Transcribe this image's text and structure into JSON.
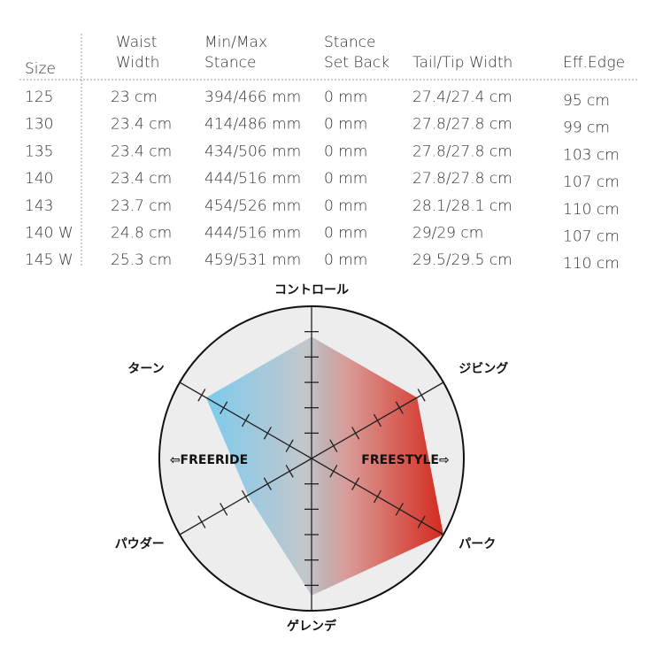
{
  "table": {
    "headers": [
      [
        "Size"
      ],
      [
        "Waist",
        "Width"
      ],
      [
        "Min/Max",
        "Stance"
      ],
      [
        "Stance",
        "Set Back"
      ],
      [
        "Tail/Tip Width"
      ],
      [
        "Eff.Edge"
      ]
    ],
    "rows": [
      [
        "125",
        "23 cm",
        "394/466 mm",
        "0 mm",
        "27.4/27.4 cm",
        "95 cm"
      ],
      [
        "130",
        "23.4 cm",
        "414/486 mm",
        "0 mm",
        "27.8/27.8 cm",
        "99 cm"
      ],
      [
        "135",
        "23.4 cm",
        "434/506 mm",
        "0 mm",
        "27.8/27.8 cm",
        "103 cm"
      ],
      [
        "140",
        "23.4 cm",
        "444/516 mm",
        "0 mm",
        "27.8/27.8 cm",
        "107 cm"
      ],
      [
        "143",
        "23.7 cm",
        "454/526 mm",
        "0 mm",
        "28.1/28.1 cm",
        "110 cm"
      ],
      [
        "140 W",
        "24.8 cm",
        "444/516 mm",
        "0 mm",
        "29/29 cm",
        "107 cm"
      ],
      [
        "145 W",
        "25.3 cm",
        "459/531 mm",
        "0 mm",
        "29.5/29.5 cm",
        "110 cm"
      ]
    ]
  },
  "chart_data": {
    "type": "radar",
    "categories": [
      "コントロール",
      "ジビング",
      "パーク",
      "ゲレンデ",
      "パウダー",
      "ターン"
    ],
    "values": [
      4.8,
      4.8,
      6,
      5.4,
      2.9,
      4.8
    ],
    "rlim": [
      0,
      6
    ],
    "rticks": [
      1,
      2,
      3,
      4,
      5
    ],
    "annotations": [
      "⇦FREERIDE",
      "FREESTYLE⇨"
    ]
  }
}
